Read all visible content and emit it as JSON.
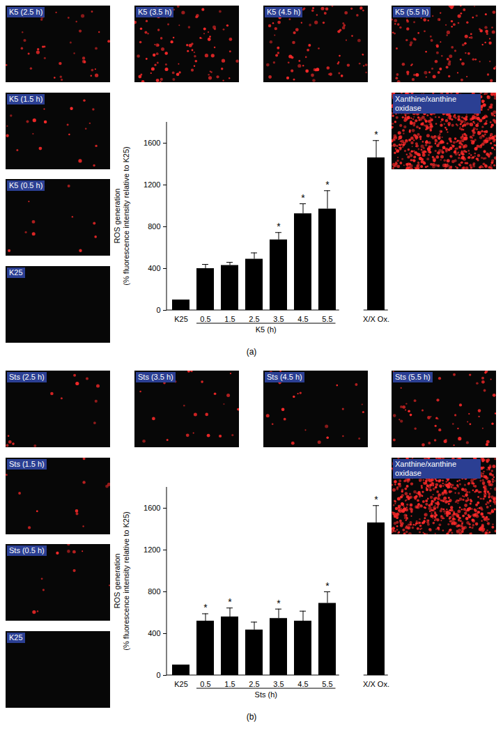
{
  "chart_data": [
    {
      "type": "bar",
      "categories": [
        "K25",
        "0.5",
        "1.5",
        "2.5",
        "3.5",
        "4.5",
        "5.5",
        null,
        "X/X Ox."
      ],
      "values": [
        100,
        400,
        430,
        490,
        675,
        925,
        970,
        null,
        1460
      ],
      "errors": [
        0,
        40,
        30,
        60,
        70,
        95,
        175,
        null,
        165
      ],
      "significant": [
        false,
        false,
        false,
        false,
        true,
        true,
        true,
        false,
        true
      ],
      "significance_mark": "*",
      "color": "#000000",
      "ylim": [
        0,
        1800
      ],
      "yticks": [
        0,
        400,
        800,
        1200,
        1600
      ],
      "y_label": [
        "ROS generation",
        "(% fluorescence intensity relative to K25)"
      ],
      "group_label": {
        "text": "K5 (h)",
        "from": "0.5",
        "to": "5.5"
      }
    },
    {
      "type": "bar",
      "categories": [
        "K25",
        "0.5",
        "1.5",
        "2.5",
        "3.5",
        "4.5",
        "5.5",
        null,
        "X/X Ox."
      ],
      "values": [
        100,
        520,
        560,
        435,
        545,
        520,
        690,
        null,
        1460
      ],
      "errors": [
        0,
        70,
        85,
        75,
        90,
        95,
        110,
        null,
        165
      ],
      "significant": [
        false,
        true,
        true,
        false,
        true,
        false,
        true,
        false,
        true
      ],
      "significance_mark": "*",
      "color": "#000000",
      "ylim": [
        0,
        1800
      ],
      "yticks": [
        0,
        400,
        800,
        1200,
        1600
      ],
      "y_label": [
        "ROS generation",
        "(% fluorescence intensity relative to K25)"
      ],
      "group_label": {
        "text": "Sts (h)",
        "from": "0.5",
        "to": "5.5"
      }
    }
  ],
  "panels": [
    {
      "label": "(a)",
      "images": [
        "K5 (2.5 h)",
        "K5 (3.5 h)",
        "K5 (4.5 h)",
        "K5 (5.5 h)",
        "K5 (1.5 h)",
        "K5 (0.5 h)",
        "K25",
        "Xanthine/xanthine oxidase"
      ]
    },
    {
      "label": "(b)",
      "images": [
        "Sts (2.5 h)",
        "Sts (3.5 h)",
        "Sts (4.5 h)",
        "Sts (5.5 h)",
        "Sts (1.5 h)",
        "Sts (0.5 h)",
        "K25",
        "Xanthine/xanthine oxidase"
      ]
    }
  ]
}
